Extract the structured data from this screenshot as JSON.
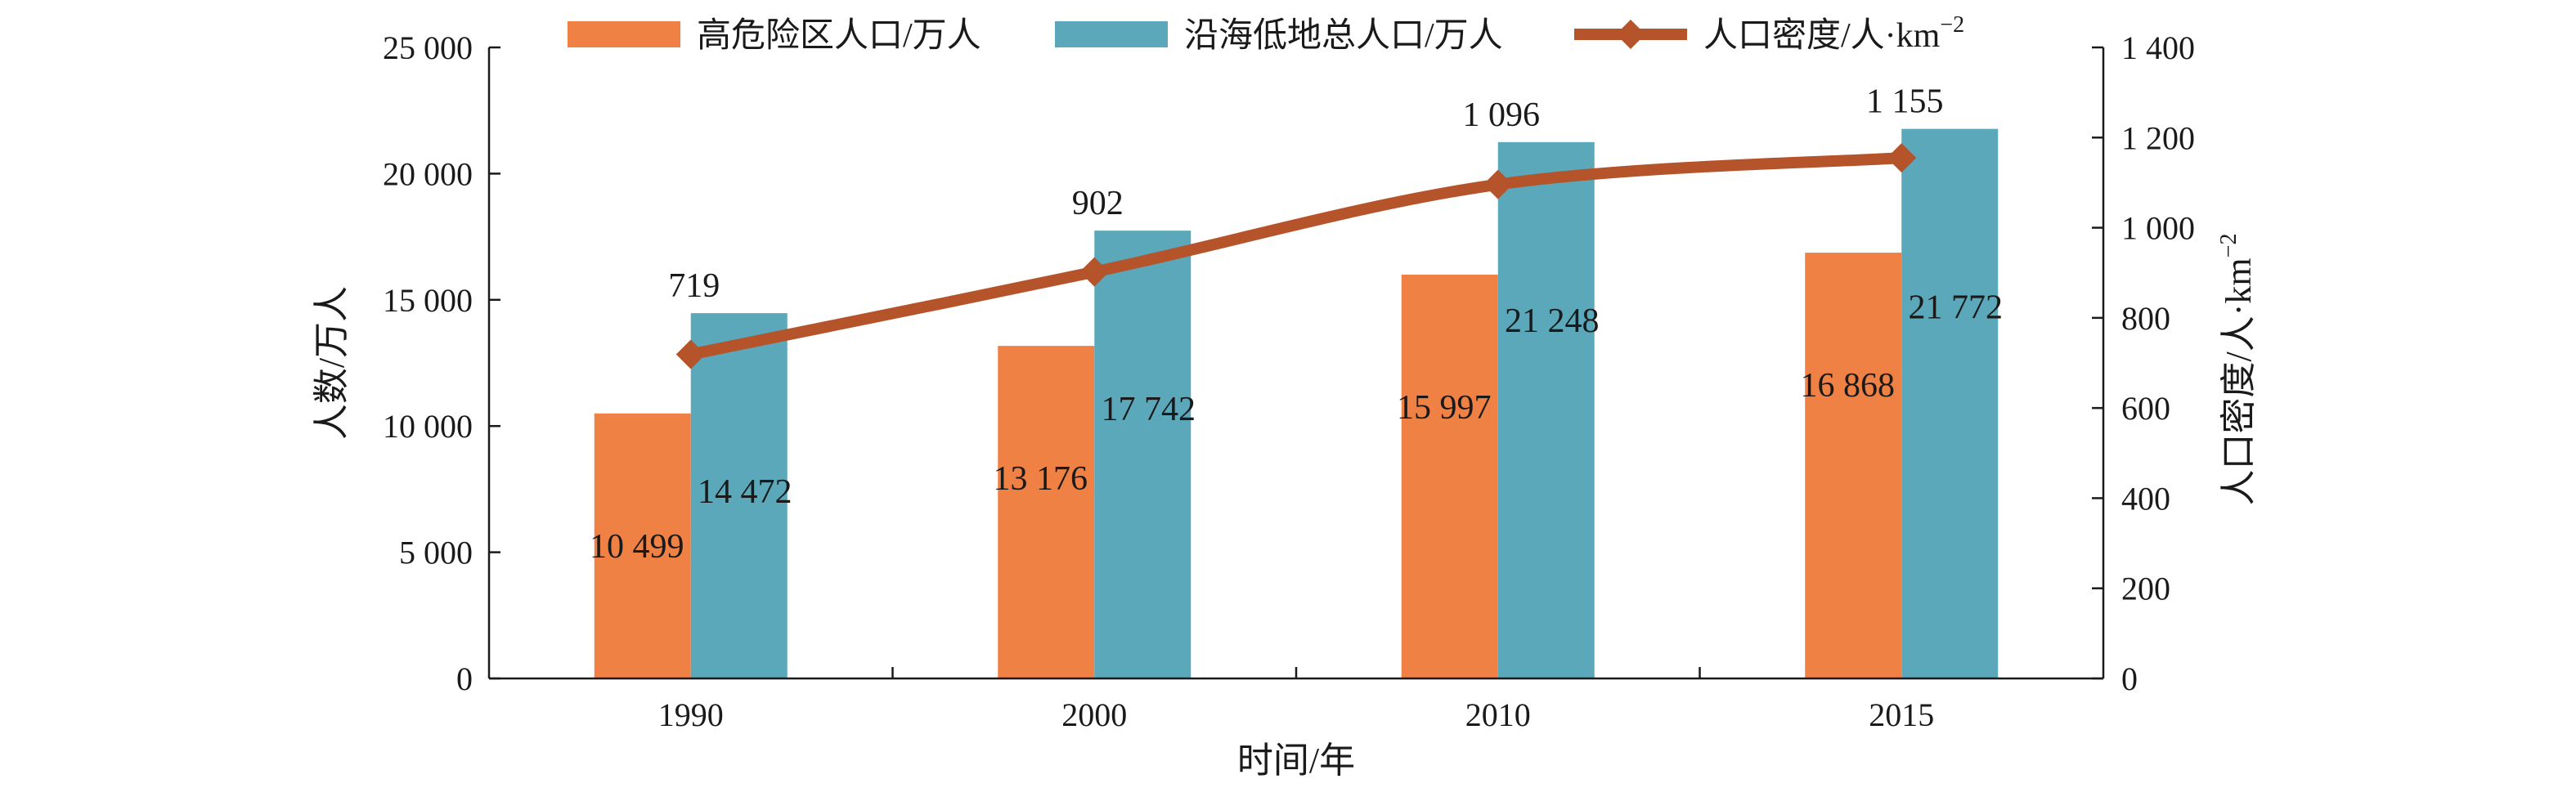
{
  "chart_data": {
    "type": "bar",
    "categories": [
      "1990",
      "2000",
      "2010",
      "2015"
    ],
    "series": [
      {
        "name": "高危险区人口/万人",
        "kind": "bar",
        "axis": "left",
        "color": "#F08144",
        "values": [
          10499,
          13176,
          15997,
          16868
        ],
        "labels": [
          "10 499",
          "13 176",
          "15 997",
          "16 868"
        ]
      },
      {
        "name": "沿海低地总人口/万人",
        "kind": "bar",
        "axis": "left",
        "color": "#5BA8BA",
        "values": [
          14472,
          17742,
          21248,
          21772
        ],
        "labels": [
          "14 472",
          "17 742",
          "21 248",
          "21 772"
        ]
      },
      {
        "name": "人口密度/人·km",
        "name_sup": "−2",
        "kind": "line",
        "axis": "right",
        "color": "#B5532A",
        "values": [
          719,
          902,
          1096,
          1155
        ],
        "labels": [
          "719",
          "902",
          "1 096",
          "1 155"
        ]
      }
    ],
    "xlabel": "时间/年",
    "ylabel": "人数/万人",
    "y2label": "人口密度/人·km",
    "y2label_sup": "−2",
    "ylim": [
      0,
      25000
    ],
    "y2lim": [
      0,
      1400
    ],
    "yticks": [
      0,
      5000,
      10000,
      15000,
      20000,
      25000
    ],
    "ytick_labels": [
      "0",
      "5 000",
      "10 000",
      "15 000",
      "20 000",
      "25 000"
    ],
    "y2ticks": [
      0,
      200,
      400,
      600,
      800,
      1000,
      1200,
      1400
    ],
    "y2tick_labels": [
      "0",
      "200",
      "400",
      "600",
      "800",
      "1 000",
      "1 200",
      "1 400"
    ],
    "legend_position": "top",
    "grid": false
  }
}
